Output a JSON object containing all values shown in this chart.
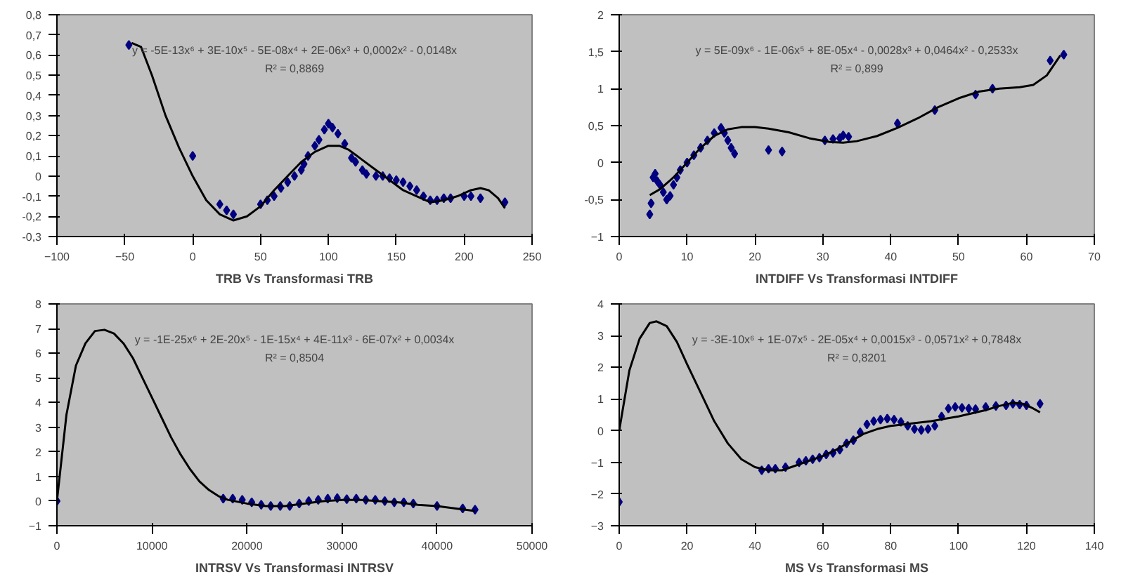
{
  "chart_data": [
    {
      "type": "scatter",
      "xlabel": "TRB Vs Transformasi TRB",
      "marker": "diamond",
      "grid": false,
      "annotations": [
        "y = -5E-13x⁶ + 3E-10x⁵ - 5E-08x⁴ + 2E-06x³ + 0,0002x² - 0,0148x",
        "R² = 0,8869"
      ],
      "xlim": [
        -100,
        250
      ],
      "xticks": [
        -100,
        -50,
        0,
        50,
        100,
        150,
        200,
        250
      ],
      "ylim": [
        -0.3,
        0.8
      ],
      "yticks": [
        {
          "value": -0.3,
          "label": "-0,3"
        },
        {
          "value": -0.2,
          "label": "-0,2"
        },
        {
          "value": -0.1,
          "label": "-0,1"
        },
        0,
        {
          "value": 0.1,
          "label": "0,1"
        },
        {
          "value": 0.2,
          "label": "0,2"
        },
        {
          "value": 0.3,
          "label": "0,3"
        },
        {
          "value": 0.4,
          "label": "0,4"
        },
        {
          "value": 0.5,
          "label": "0,5"
        },
        {
          "value": 0.6,
          "label": "0,6"
        },
        {
          "value": 0.7,
          "label": "0,7"
        },
        {
          "value": 0.8,
          "label": "0,8"
        }
      ],
      "series": [
        {
          "color": "#000080",
          "x": [
            -47,
            0,
            20,
            25,
            30,
            50,
            55,
            60,
            65,
            70,
            75,
            80,
            82,
            85,
            90,
            93,
            97,
            100,
            103,
            107,
            112,
            117,
            120,
            125,
            128,
            135,
            140,
            145,
            150,
            155,
            160,
            165,
            170,
            175,
            180,
            185,
            190,
            200,
            205,
            212,
            230
          ],
          "values": [
            0.65,
            0.1,
            -0.14,
            -0.17,
            -0.19,
            -0.14,
            -0.12,
            -0.1,
            -0.06,
            -0.03,
            0.0,
            0.03,
            0.06,
            0.1,
            0.15,
            0.18,
            0.23,
            0.26,
            0.24,
            0.21,
            0.16,
            0.09,
            0.07,
            0.03,
            0.01,
            0.0,
            0.0,
            -0.01,
            -0.02,
            -0.03,
            -0.05,
            -0.07,
            -0.1,
            -0.12,
            -0.12,
            -0.11,
            -0.11,
            -0.1,
            -0.1,
            -0.11,
            -0.13
          ]
        },
        {
          "type": "line",
          "marker": "none",
          "color": "#000000",
          "x": [
            -45,
            -38,
            -30,
            -20,
            -10,
            0,
            10,
            20,
            30,
            40,
            50,
            60,
            70,
            80,
            90,
            100,
            108,
            115,
            125,
            135,
            145,
            155,
            165,
            175,
            185,
            195,
            205,
            212,
            218,
            225,
            230
          ],
          "values": [
            0.66,
            0.64,
            0.5,
            0.3,
            0.14,
            0.0,
            -0.12,
            -0.19,
            -0.22,
            -0.2,
            -0.15,
            -0.07,
            0.0,
            0.07,
            0.12,
            0.15,
            0.15,
            0.13,
            0.08,
            0.03,
            -0.02,
            -0.07,
            -0.1,
            -0.13,
            -0.12,
            -0.1,
            -0.07,
            -0.06,
            -0.07,
            -0.11,
            -0.16
          ]
        }
      ]
    },
    {
      "type": "scatter",
      "xlabel": "INTDIFF Vs Transformasi INTDIFF",
      "marker": "diamond",
      "grid": false,
      "annotations": [
        "y = 5E-09x⁶ - 1E-06x⁵ + 8E-05x⁴ - 0,0028x³ + 0,0464x² - 0,2533x",
        "R² = 0,899"
      ],
      "xlim": [
        0,
        70
      ],
      "xticks": [
        0,
        10,
        20,
        30,
        40,
        50,
        60,
        70
      ],
      "ylim": [
        -1,
        2
      ],
      "yticks": [
        -1,
        {
          "value": -0.5,
          "label": "-0,5"
        },
        0,
        {
          "value": 0.5,
          "label": "0,5"
        },
        1,
        {
          "value": 1.5,
          "label": "1,5"
        },
        2
      ],
      "series": [
        {
          "color": "#000080",
          "x": [
            4.5,
            4.7,
            5,
            5.3,
            5.6,
            6,
            6.5,
            7,
            7.5,
            8,
            8.5,
            9,
            10,
            11,
            12,
            13,
            14,
            15,
            15.5,
            16,
            16.5,
            17,
            22,
            24,
            30.3,
            31.5,
            32.5,
            33,
            33.8,
            41,
            46.5,
            52.5,
            55,
            63.5,
            65.5
          ],
          "values": [
            -0.7,
            -0.55,
            -0.2,
            -0.15,
            -0.25,
            -0.3,
            -0.4,
            -0.5,
            -0.45,
            -0.3,
            -0.2,
            -0.1,
            0.0,
            0.1,
            0.2,
            0.3,
            0.4,
            0.47,
            0.4,
            0.3,
            0.2,
            0.12,
            0.17,
            0.15,
            0.3,
            0.32,
            0.33,
            0.37,
            0.35,
            0.53,
            0.71,
            0.92,
            1.0,
            1.38,
            1.46
          ]
        },
        {
          "type": "line",
          "marker": "none",
          "color": "#000000",
          "x": [
            4.5,
            6,
            8,
            10,
            12,
            14,
            16,
            18,
            20,
            22,
            25,
            28,
            31,
            33,
            35,
            38,
            41,
            44,
            47,
            50,
            53,
            56,
            59,
            61,
            63,
            65
          ],
          "values": [
            -0.44,
            -0.36,
            -0.2,
            0.0,
            0.2,
            0.36,
            0.45,
            0.48,
            0.48,
            0.46,
            0.41,
            0.33,
            0.28,
            0.27,
            0.29,
            0.36,
            0.47,
            0.6,
            0.75,
            0.87,
            0.96,
            1.0,
            1.02,
            1.05,
            1.18,
            1.45
          ]
        }
      ]
    },
    {
      "type": "scatter",
      "xlabel": "INTRSV Vs Transformasi INTRSV",
      "marker": "diamond",
      "grid": false,
      "annotations": [
        "y = -1E-25x⁶ + 2E-20x⁵ - 1E-15x⁴ + 4E-11x³ - 6E-07x² + 0,0034x",
        "R² = 0,8504"
      ],
      "xlim": [
        0,
        50000
      ],
      "xticks": [
        0,
        10000,
        20000,
        30000,
        40000,
        50000
      ],
      "ylim": [
        -1,
        8
      ],
      "yticks": [
        -1,
        0,
        1,
        2,
        3,
        4,
        5,
        6,
        7,
        8
      ],
      "series": [
        {
          "color": "#000080",
          "x": [
            0,
            17500,
            18500,
            19500,
            20500,
            21500,
            22500,
            23500,
            24500,
            25500,
            26500,
            27500,
            28500,
            29500,
            30500,
            31500,
            32500,
            33500,
            34500,
            35500,
            36500,
            37500,
            40000,
            42700,
            44000
          ],
          "values": [
            0,
            0.1,
            0.1,
            0.05,
            -0.05,
            -0.15,
            -0.2,
            -0.2,
            -0.2,
            -0.1,
            0.0,
            0.05,
            0.1,
            0.12,
            0.08,
            0.1,
            0.05,
            0.05,
            0.0,
            -0.05,
            -0.05,
            -0.1,
            -0.2,
            -0.3,
            -0.35
          ]
        },
        {
          "type": "line",
          "marker": "none",
          "color": "#000000",
          "x": [
            0,
            1000,
            2000,
            3000,
            4000,
            5000,
            6000,
            7000,
            8000,
            9000,
            10000,
            11000,
            12000,
            13000,
            14000,
            15000,
            16000,
            17000,
            18000,
            20000,
            22000,
            24000,
            26000,
            28000,
            30000,
            32000,
            34000,
            36000,
            38000,
            40000,
            42000,
            44000
          ],
          "values": [
            0,
            3.5,
            5.5,
            6.4,
            6.9,
            6.95,
            6.8,
            6.4,
            5.8,
            5.0,
            4.2,
            3.4,
            2.6,
            1.9,
            1.3,
            0.8,
            0.45,
            0.2,
            0.05,
            -0.1,
            -0.2,
            -0.2,
            -0.1,
            0.0,
            0.05,
            0.05,
            0.0,
            -0.05,
            -0.15,
            -0.2,
            -0.3,
            -0.4
          ]
        }
      ]
    },
    {
      "type": "scatter",
      "xlabel": "MS Vs Transformasi MS",
      "marker": "diamond",
      "grid": false,
      "annotations": [
        "y = -3E-10x⁶ + 1E-07x⁵ - 2E-05x⁴ + 0,0015x³ - 0,0571x² + 0,7848x",
        "R² = 0,8201"
      ],
      "xlim": [
        0,
        140
      ],
      "xticks": [
        0,
        20,
        40,
        60,
        80,
        100,
        120,
        140
      ],
      "ylim": [
        -3,
        4
      ],
      "yticks": [
        -3,
        -2,
        -1,
        0,
        1,
        2,
        3,
        4
      ],
      "series": [
        {
          "color": "#000080",
          "x": [
            0,
            42,
            44,
            46,
            49,
            53,
            55,
            57,
            59,
            61,
            63,
            65,
            67,
            69,
            71,
            73,
            75,
            77,
            79,
            81,
            83,
            85,
            87,
            89,
            91,
            93,
            95,
            97,
            99,
            101,
            103,
            105,
            108,
            111,
            114,
            116,
            118,
            120,
            124
          ],
          "values": [
            -2.25,
            -1.25,
            -1.2,
            -1.2,
            -1.15,
            -1.0,
            -0.95,
            -0.9,
            -0.85,
            -0.75,
            -0.7,
            -0.6,
            -0.4,
            -0.3,
            -0.05,
            0.2,
            0.3,
            0.35,
            0.38,
            0.35,
            0.28,
            0.15,
            0.05,
            0.02,
            0.05,
            0.15,
            0.45,
            0.7,
            0.75,
            0.72,
            0.7,
            0.68,
            0.75,
            0.78,
            0.8,
            0.85,
            0.82,
            0.8,
            0.85
          ]
        },
        {
          "type": "line",
          "marker": "none",
          "color": "#000000",
          "x": [
            0,
            3,
            6,
            9,
            11,
            14,
            17,
            20,
            24,
            28,
            32,
            36,
            40,
            44,
            48,
            52,
            56,
            60,
            64,
            68,
            72,
            76,
            80,
            84,
            88,
            92,
            96,
            100,
            104,
            108,
            112,
            116,
            119,
            122,
            124
          ],
          "values": [
            0,
            1.9,
            2.9,
            3.4,
            3.45,
            3.3,
            2.8,
            2.1,
            1.2,
            0.3,
            -0.4,
            -0.9,
            -1.15,
            -1.25,
            -1.25,
            -1.1,
            -0.95,
            -0.8,
            -0.6,
            -0.35,
            -0.1,
            0.05,
            0.15,
            0.2,
            0.25,
            0.3,
            0.38,
            0.45,
            0.55,
            0.65,
            0.78,
            0.88,
            0.85,
            0.7,
            0.58
          ]
        }
      ]
    }
  ]
}
